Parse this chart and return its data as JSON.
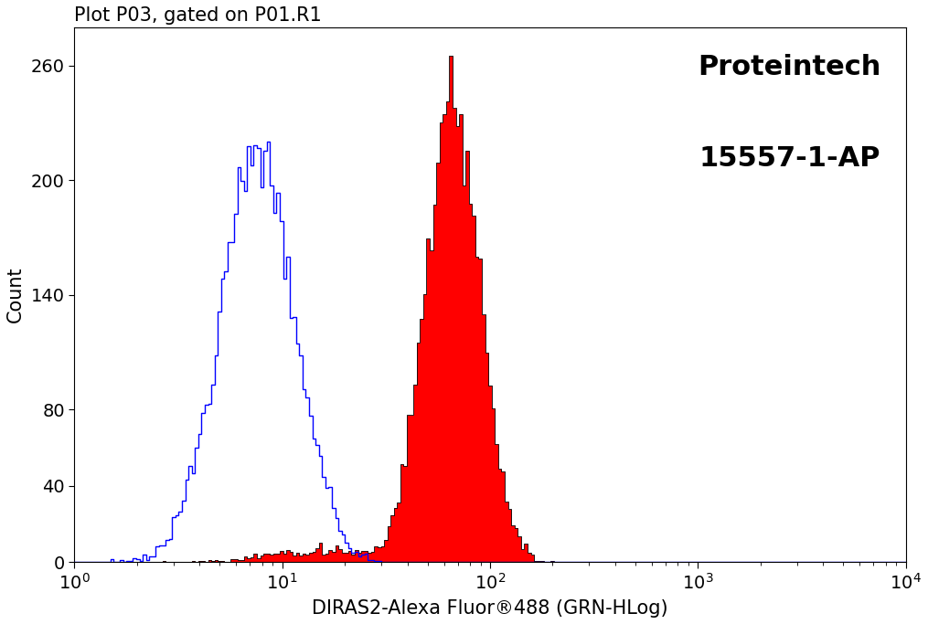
{
  "title": "Plot P03, gated on P01.R1",
  "xlabel": "DIRAS2-Alexa Fluor®488 (GRN-HLog)",
  "ylabel": "Count",
  "annotation_line1": "Proteintech",
  "annotation_line2": "15557-1-AP",
  "xlim": [
    1.0,
    10000.0
  ],
  "ylim": [
    0,
    280
  ],
  "yticks": [
    0,
    40,
    80,
    140,
    200,
    260
  ],
  "background_color": "#ffffff",
  "blue_color": "#0000ff",
  "red_color": "#ff0000",
  "black_color": "#000000",
  "title_fontsize": 15,
  "label_fontsize": 15,
  "annot_fontsize": 22,
  "tick_fontsize": 14,
  "n_bins": 256,
  "blue_log_mean": 0.875,
  "blue_log_std": 0.18,
  "blue_n": 12000,
  "blue_max_count": 220,
  "red_log_mean": 1.82,
  "red_log_std": 0.13,
  "red_n": 12000,
  "red_max_count": 265,
  "red_low_n": 600,
  "red_low_mean": 1.2,
  "red_low_std": 0.28
}
